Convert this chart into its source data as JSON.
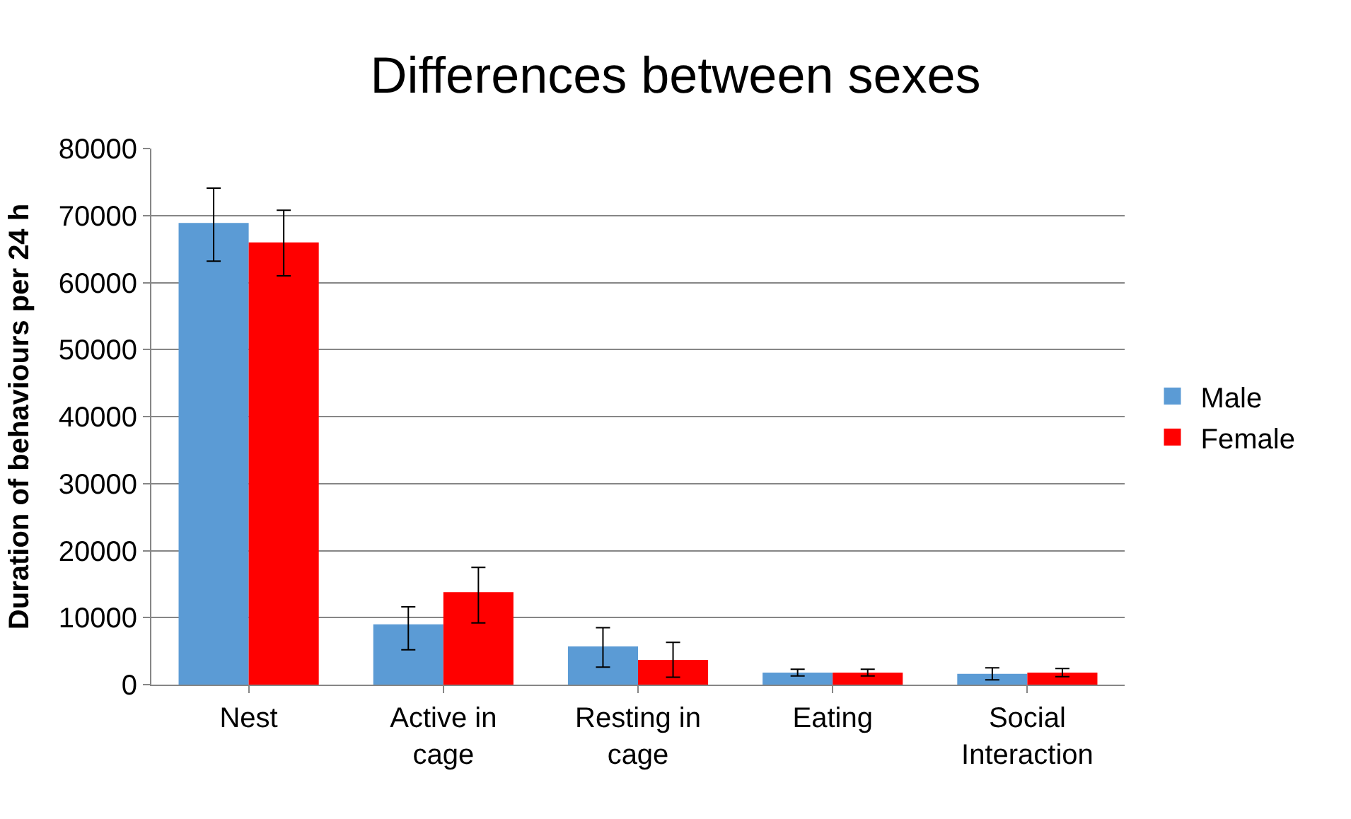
{
  "chart_data": {
    "type": "bar",
    "title": "Differences between sexes",
    "ylabel": "Duration of behaviours per 24 h",
    "categories": [
      "Nest",
      "Active in cage",
      "Resting in cage",
      "Eating",
      "Social Interaction"
    ],
    "series": [
      {
        "name": "Male",
        "color": "#5b9bd5",
        "values": [
          68900,
          9000,
          5700,
          1800,
          1600
        ],
        "errors": [
          [
            63200,
            74100
          ],
          [
            5200,
            11600
          ],
          [
            2600,
            8500
          ],
          [
            1300,
            2300
          ],
          [
            700,
            2500
          ]
        ]
      },
      {
        "name": "Female",
        "color": "#ff0000",
        "values": [
          66000,
          13800,
          3700,
          1800,
          1800
        ],
        "errors": [
          [
            61000,
            70800
          ],
          [
            9200,
            17500
          ],
          [
            1100,
            6300
          ],
          [
            1300,
            2300
          ],
          [
            1200,
            2400
          ]
        ]
      }
    ],
    "ylim": [
      0,
      80000
    ],
    "yticks": [
      0,
      10000,
      20000,
      30000,
      40000,
      50000,
      60000,
      70000,
      80000
    ],
    "grid": "y",
    "legend": "right"
  }
}
